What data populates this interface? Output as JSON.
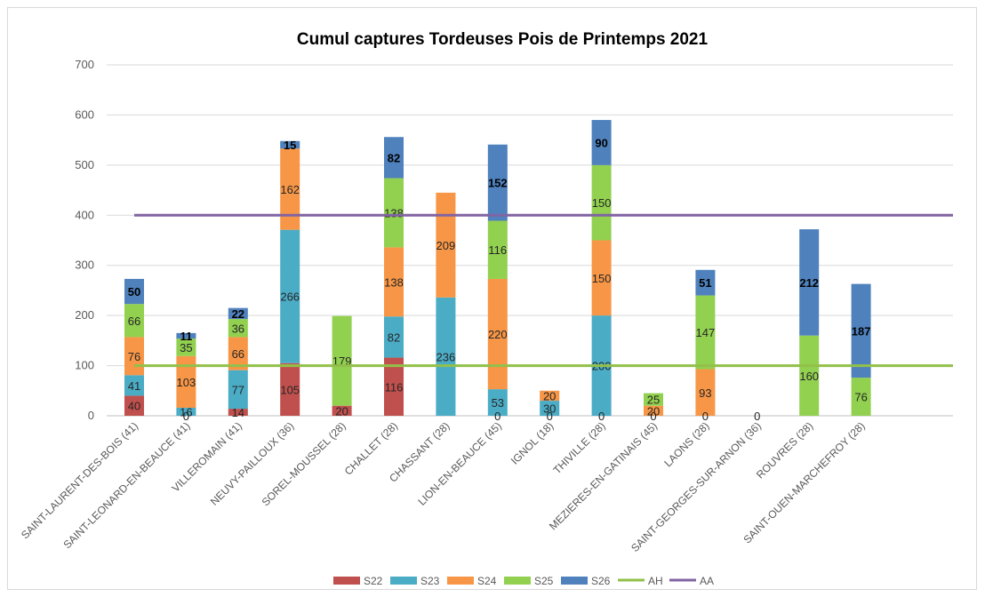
{
  "chart_data": {
    "type": "bar",
    "stacked": true,
    "title": "Cumul captures Tordeuses Pois de Printemps 2021",
    "ylim": [
      0,
      700
    ],
    "yticks": [
      "0",
      "100",
      "200",
      "300",
      "400",
      "500",
      "600",
      "700"
    ],
    "grid": true,
    "legend_position": "bottom",
    "categories": [
      "SAINT-LAURENT-DES-BOIS (41)",
      "SAINT-LEONARD-EN-BEAUCE (41)",
      "VILLEROMAIN (41)",
      "NEUVY-PAILLOUX (36)",
      "SOREL-MOUSSEL (28)",
      "CHALLET (28)",
      "CHASSANT (28)",
      "LION-EN-BEAUCE (45)",
      "IGNOL (18)",
      "THIVILLE (28)",
      "MEZIERES-EN-GATINAIS (45)",
      "LAONS (28)",
      "SAINT-GEORGES-SUR-ARNON (36)",
      "ROUVRES (28)",
      "SAINT-OUEN-MARCHEFROY (28)"
    ],
    "series": [
      {
        "name": "S22",
        "color": "#c0504d",
        "values": [
          40,
          null,
          14,
          105,
          20,
          116,
          null,
          null,
          null,
          null,
          null,
          null,
          null,
          null,
          null
        ],
        "labels": [
          "40",
          "",
          "14",
          "105",
          "20",
          "116",
          "",
          "",
          "",
          "",
          "",
          "",
          "",
          "",
          ""
        ]
      },
      {
        "name": "S23",
        "color": "#4bacc6",
        "values": [
          41,
          16,
          77,
          266,
          null,
          82,
          236,
          53,
          30,
          200,
          null,
          null,
          null,
          null,
          null
        ],
        "labels": [
          "41",
          "16",
          "77",
          "266",
          "",
          "82",
          "236",
          "53",
          "30",
          "200",
          "",
          "",
          "",
          "",
          ""
        ]
      },
      {
        "name": "S24",
        "color": "#f79646",
        "values": [
          76,
          103,
          66,
          162,
          null,
          138,
          209,
          220,
          20,
          150,
          20,
          93,
          null,
          null,
          null
        ],
        "labels": [
          "76",
          "103",
          "66",
          "162",
          "",
          "138",
          "209",
          "220",
          "20",
          "150",
          "20",
          "93",
          "",
          "",
          ""
        ]
      },
      {
        "name": "S25",
        "color": "#92d050",
        "values": [
          66,
          35,
          36,
          null,
          179,
          138,
          null,
          116,
          null,
          150,
          25,
          147,
          null,
          160,
          76
        ],
        "labels": [
          "66",
          "35",
          "36",
          "",
          "179",
          "138",
          "",
          "116",
          "",
          "150",
          "25",
          "147",
          "",
          "160",
          "76"
        ]
      },
      {
        "name": "S26",
        "color": "#4f81bd",
        "values": [
          50,
          11,
          22,
          15,
          null,
          82,
          null,
          152,
          null,
          90,
          null,
          51,
          null,
          212,
          187
        ],
        "labels": [
          "50",
          "11",
          "22",
          "15",
          "",
          "82",
          "",
          "152",
          "",
          "90",
          "",
          "51",
          "",
          "212",
          "187"
        ]
      }
    ],
    "zero_labels": [
      {
        "category": 1,
        "text": "0"
      },
      {
        "category": 7,
        "text": "0"
      },
      {
        "category": 8,
        "text": "0"
      },
      {
        "category": 9,
        "text": "0"
      },
      {
        "category": 10,
        "text": "0"
      },
      {
        "category": 11,
        "text": "0"
      },
      {
        "category": 12,
        "text": "0"
      }
    ],
    "lines": [
      {
        "name": "AH",
        "value": 100,
        "color": "#92c04a"
      },
      {
        "name": "AA",
        "value": 400,
        "color": "#8064a2"
      }
    ]
  }
}
